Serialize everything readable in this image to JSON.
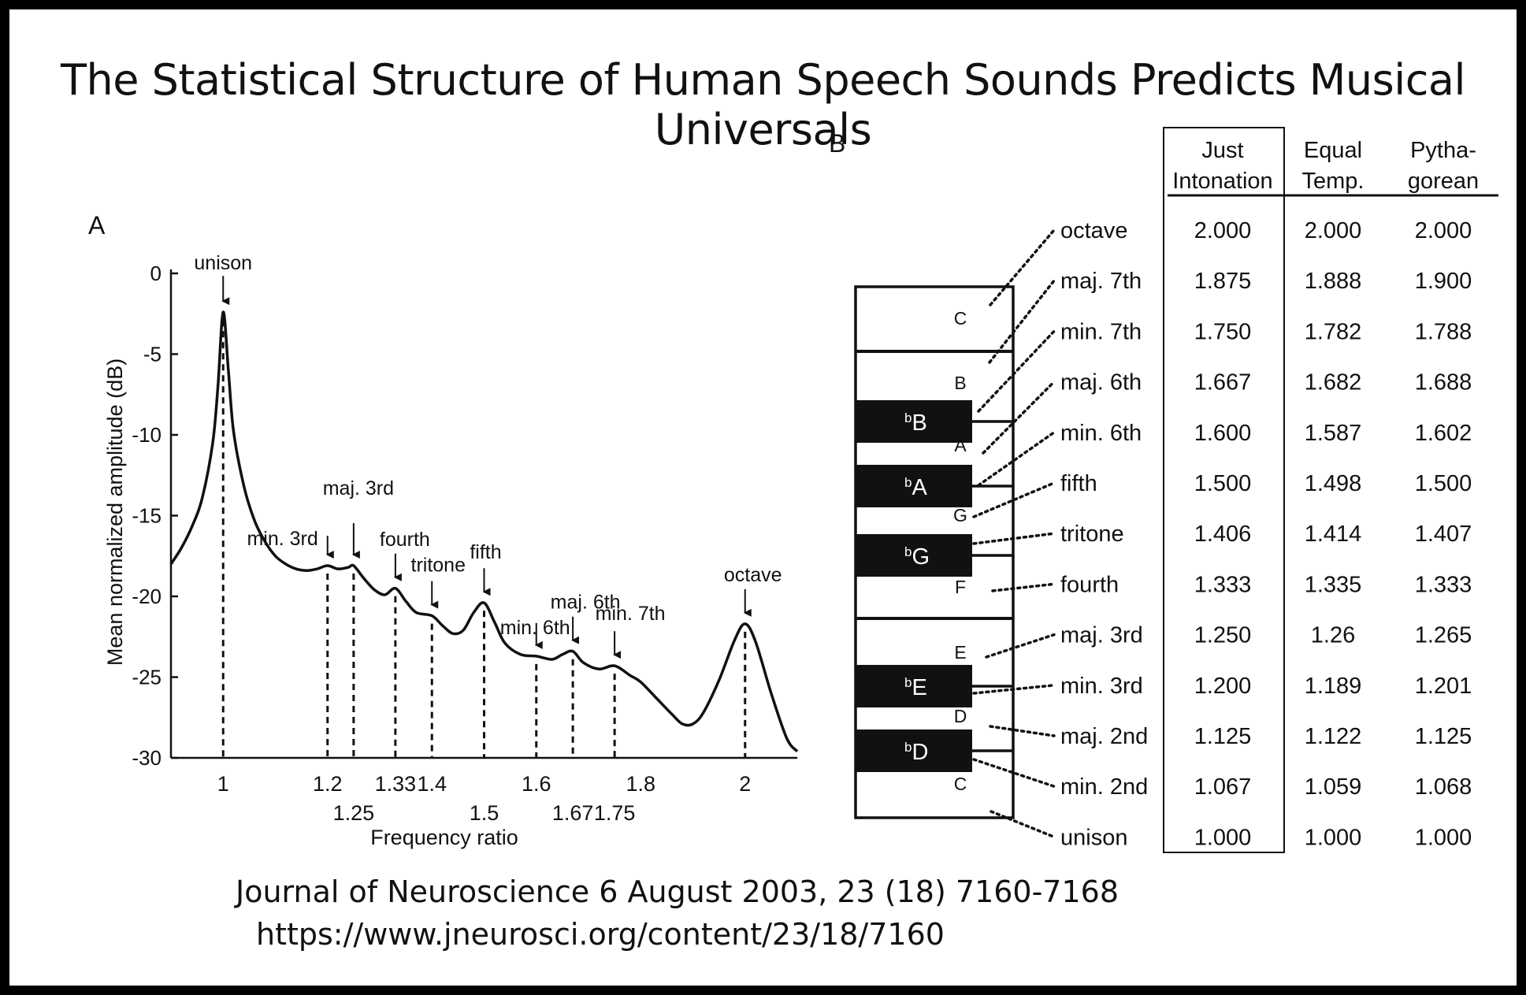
{
  "title": "The Statistical Structure of Human Speech Sounds Predicts Musical Universals",
  "panel_a": {
    "label": "A",
    "chart_data": {
      "type": "line",
      "xlabel": "Frequency ratio",
      "ylabel": "Mean normalized amplitude (dB)",
      "xlim": [
        0.9,
        2.1
      ],
      "ylim": [
        -30,
        0
      ],
      "y_ticks": [
        "0",
        "-5",
        "-10",
        "-15",
        "-20",
        "-25",
        "-30"
      ],
      "y_tick_values": [
        0,
        -5,
        -10,
        -15,
        -20,
        -25,
        -30
      ],
      "x_ticks_row1": [
        {
          "label": "1",
          "value": 1.0
        },
        {
          "label": "1.2",
          "value": 1.2
        },
        {
          "label": "1.33",
          "value": 1.33
        },
        {
          "label": "1.4",
          "value": 1.4
        },
        {
          "label": "1.6",
          "value": 1.6
        },
        {
          "label": "1.8",
          "value": 1.8
        },
        {
          "label": "2",
          "value": 2.0
        }
      ],
      "x_ticks_row2": [
        {
          "label": "1.25",
          "value": 1.25
        },
        {
          "label": "1.5",
          "value": 1.5
        },
        {
          "label": "1.67",
          "value": 1.67
        },
        {
          "label": "1.75",
          "value": 1.75
        }
      ],
      "curve": [
        [
          0.9,
          -18.0
        ],
        [
          0.92,
          -17.0
        ],
        [
          0.94,
          -15.7
        ],
        [
          0.96,
          -13.9
        ],
        [
          0.98,
          -10.5
        ],
        [
          0.99,
          -7.0
        ],
        [
          1.0,
          -2.4
        ],
        [
          1.01,
          -6.0
        ],
        [
          1.02,
          -9.8
        ],
        [
          1.04,
          -13.2
        ],
        [
          1.06,
          -15.3
        ],
        [
          1.08,
          -16.6
        ],
        [
          1.1,
          -17.5
        ],
        [
          1.12,
          -18.0
        ],
        [
          1.14,
          -18.3
        ],
        [
          1.16,
          -18.4
        ],
        [
          1.18,
          -18.3
        ],
        [
          1.2,
          -18.1
        ],
        [
          1.22,
          -18.3
        ],
        [
          1.24,
          -18.2
        ],
        [
          1.25,
          -18.1
        ],
        [
          1.27,
          -18.9
        ],
        [
          1.29,
          -19.6
        ],
        [
          1.31,
          -19.9
        ],
        [
          1.33,
          -19.5
        ],
        [
          1.35,
          -20.3
        ],
        [
          1.37,
          -21.0
        ],
        [
          1.4,
          -21.2
        ],
        [
          1.42,
          -21.8
        ],
        [
          1.44,
          -22.3
        ],
        [
          1.46,
          -22.1
        ],
        [
          1.48,
          -21.0
        ],
        [
          1.5,
          -20.4
        ],
        [
          1.52,
          -21.6
        ],
        [
          1.54,
          -22.9
        ],
        [
          1.57,
          -23.6
        ],
        [
          1.6,
          -23.7
        ],
        [
          1.63,
          -23.9
        ],
        [
          1.65,
          -23.6
        ],
        [
          1.67,
          -23.4
        ],
        [
          1.69,
          -24.1
        ],
        [
          1.72,
          -24.5
        ],
        [
          1.75,
          -24.3
        ],
        [
          1.78,
          -24.9
        ],
        [
          1.8,
          -25.3
        ],
        [
          1.83,
          -26.3
        ],
        [
          1.86,
          -27.3
        ],
        [
          1.88,
          -27.9
        ],
        [
          1.9,
          -27.9
        ],
        [
          1.92,
          -27.2
        ],
        [
          1.95,
          -25.2
        ],
        [
          1.98,
          -22.7
        ],
        [
          2.0,
          -21.7
        ],
        [
          2.02,
          -22.8
        ],
        [
          2.05,
          -26.0
        ],
        [
          2.08,
          -28.8
        ],
        [
          2.1,
          -29.6
        ]
      ],
      "peak_markers": [
        {
          "label": "unison",
          "x": 1.0,
          "y": -2.4
        },
        {
          "label": "min. 3rd",
          "x": 1.2,
          "y": -18.1
        },
        {
          "label": "maj. 3rd",
          "x": 1.25,
          "y": -18.1
        },
        {
          "label": "fourth",
          "x": 1.33,
          "y": -19.5
        },
        {
          "label": "tritone",
          "x": 1.4,
          "y": -21.2
        },
        {
          "label": "fifth",
          "x": 1.5,
          "y": -20.4
        },
        {
          "label": "min. 6th",
          "x": 1.6,
          "y": -23.7
        },
        {
          "label": "maj. 6th",
          "x": 1.67,
          "y": -23.4
        },
        {
          "label": "min. 7th",
          "x": 1.75,
          "y": -24.3
        },
        {
          "label": "octave",
          "x": 2.0,
          "y": -21.7
        }
      ]
    }
  },
  "panel_b": {
    "label": "B",
    "columns": [
      {
        "line1": "Just",
        "line2": "Intonation"
      },
      {
        "line1": "Equal",
        "line2": "Temp."
      },
      {
        "line1": "Pytha-",
        "line2": "gorean"
      }
    ],
    "rows": [
      {
        "interval": "octave",
        "just": "2.000",
        "equal": "2.000",
        "pyth": "2.000"
      },
      {
        "interval": "maj. 7th",
        "just": "1.875",
        "equal": "1.888",
        "pyth": "1.900"
      },
      {
        "interval": "min. 7th",
        "just": "1.750",
        "equal": "1.782",
        "pyth": "1.788"
      },
      {
        "interval": "maj. 6th",
        "just": "1.667",
        "equal": "1.682",
        "pyth": "1.688"
      },
      {
        "interval": "min. 6th",
        "just": "1.600",
        "equal": "1.587",
        "pyth": "1.602"
      },
      {
        "interval": "fifth",
        "just": "1.500",
        "equal": "1.498",
        "pyth": "1.500"
      },
      {
        "interval": "tritone",
        "just": "1.406",
        "equal": "1.414",
        "pyth": "1.407"
      },
      {
        "interval": "fourth",
        "just": "1.333",
        "equal": "1.335",
        "pyth": "1.333"
      },
      {
        "interval": "maj. 3rd",
        "just": "1.250",
        "equal": "1.26",
        "pyth": "1.265"
      },
      {
        "interval": "min. 3rd",
        "just": "1.200",
        "equal": "1.189",
        "pyth": "1.201"
      },
      {
        "interval": "maj. 2nd",
        "just": "1.125",
        "equal": "1.122",
        "pyth": "1.125"
      },
      {
        "interval": "min. 2nd",
        "just": "1.067",
        "equal": "1.059",
        "pyth": "1.068"
      },
      {
        "interval": "unison",
        "just": "1.000",
        "equal": "1.000",
        "pyth": "1.000"
      }
    ],
    "white_keys": [
      "C",
      "B",
      "A",
      "G",
      "F",
      "E",
      "D",
      "C"
    ],
    "black_keys": [
      {
        "flat": "b",
        "note": "B"
      },
      {
        "flat": "b",
        "note": "A"
      },
      {
        "flat": "b",
        "note": "G"
      },
      {
        "flat": "b",
        "note": "E"
      },
      {
        "flat": "b",
        "note": "D"
      }
    ]
  },
  "citation": {
    "line1": "Journal of Neuroscience 6 August 2003, 23 (18) 7160-7168",
    "line2": "https://www.jneurosci.org/content/23/18/7160"
  }
}
